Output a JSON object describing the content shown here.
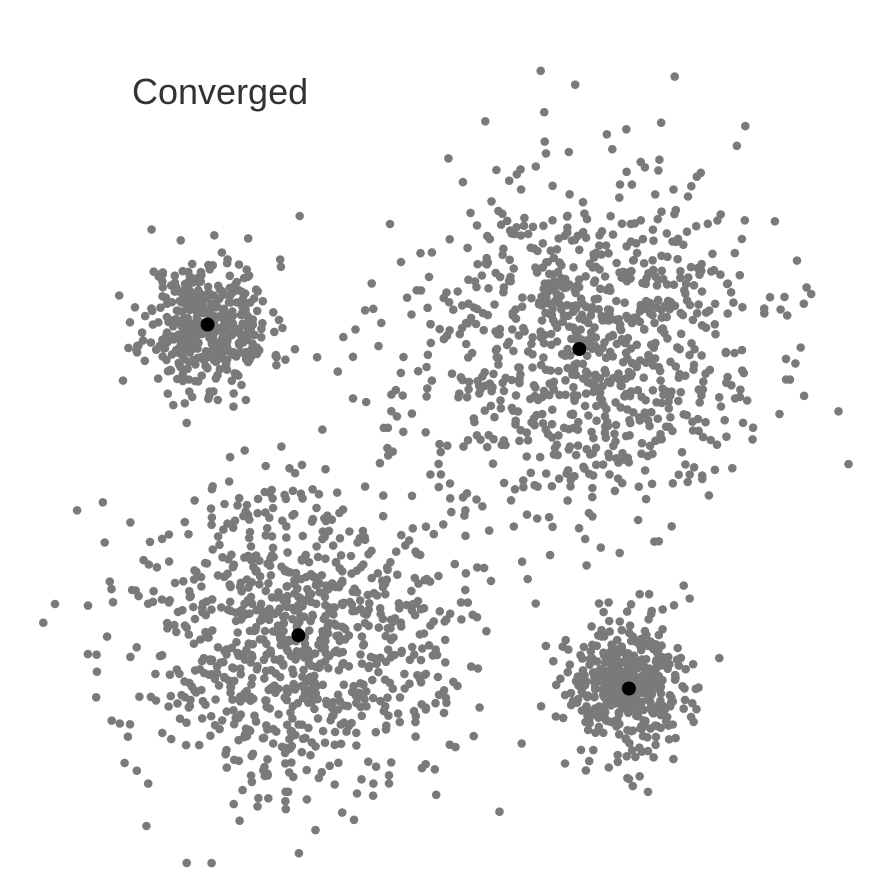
{
  "status": {
    "label": "Converged"
  },
  "colors": {
    "point": "#7a7a7a",
    "centroid": "#000000",
    "background": "#ffffff"
  },
  "chart_data": {
    "type": "scatter",
    "title": "",
    "xlabel": "",
    "ylabel": "",
    "axes_visible": false,
    "grid": false,
    "xlim": [
      0,
      10
    ],
    "ylim": [
      0,
      10
    ],
    "clusters": [
      {
        "center": [
          2.15,
          6.4
        ],
        "spread_x": 0.38,
        "spread_y": 0.4,
        "count": 420,
        "seed": 11
      },
      {
        "center": [
          6.65,
          6.1
        ],
        "spread_x": 1.08,
        "spread_y": 1.05,
        "count": 900,
        "seed": 23
      },
      {
        "center": [
          3.25,
          2.6
        ],
        "spread_x": 0.95,
        "spread_y": 0.95,
        "count": 900,
        "seed": 37
      },
      {
        "center": [
          7.25,
          1.95
        ],
        "spread_x": 0.4,
        "spread_y": 0.42,
        "count": 420,
        "seed": 53
      }
    ],
    "centroids": [
      {
        "x": 2.15,
        "y": 6.4
      },
      {
        "x": 6.65,
        "y": 6.1
      },
      {
        "x": 3.25,
        "y": 2.6
      },
      {
        "x": 7.25,
        "y": 1.95
      }
    ]
  }
}
